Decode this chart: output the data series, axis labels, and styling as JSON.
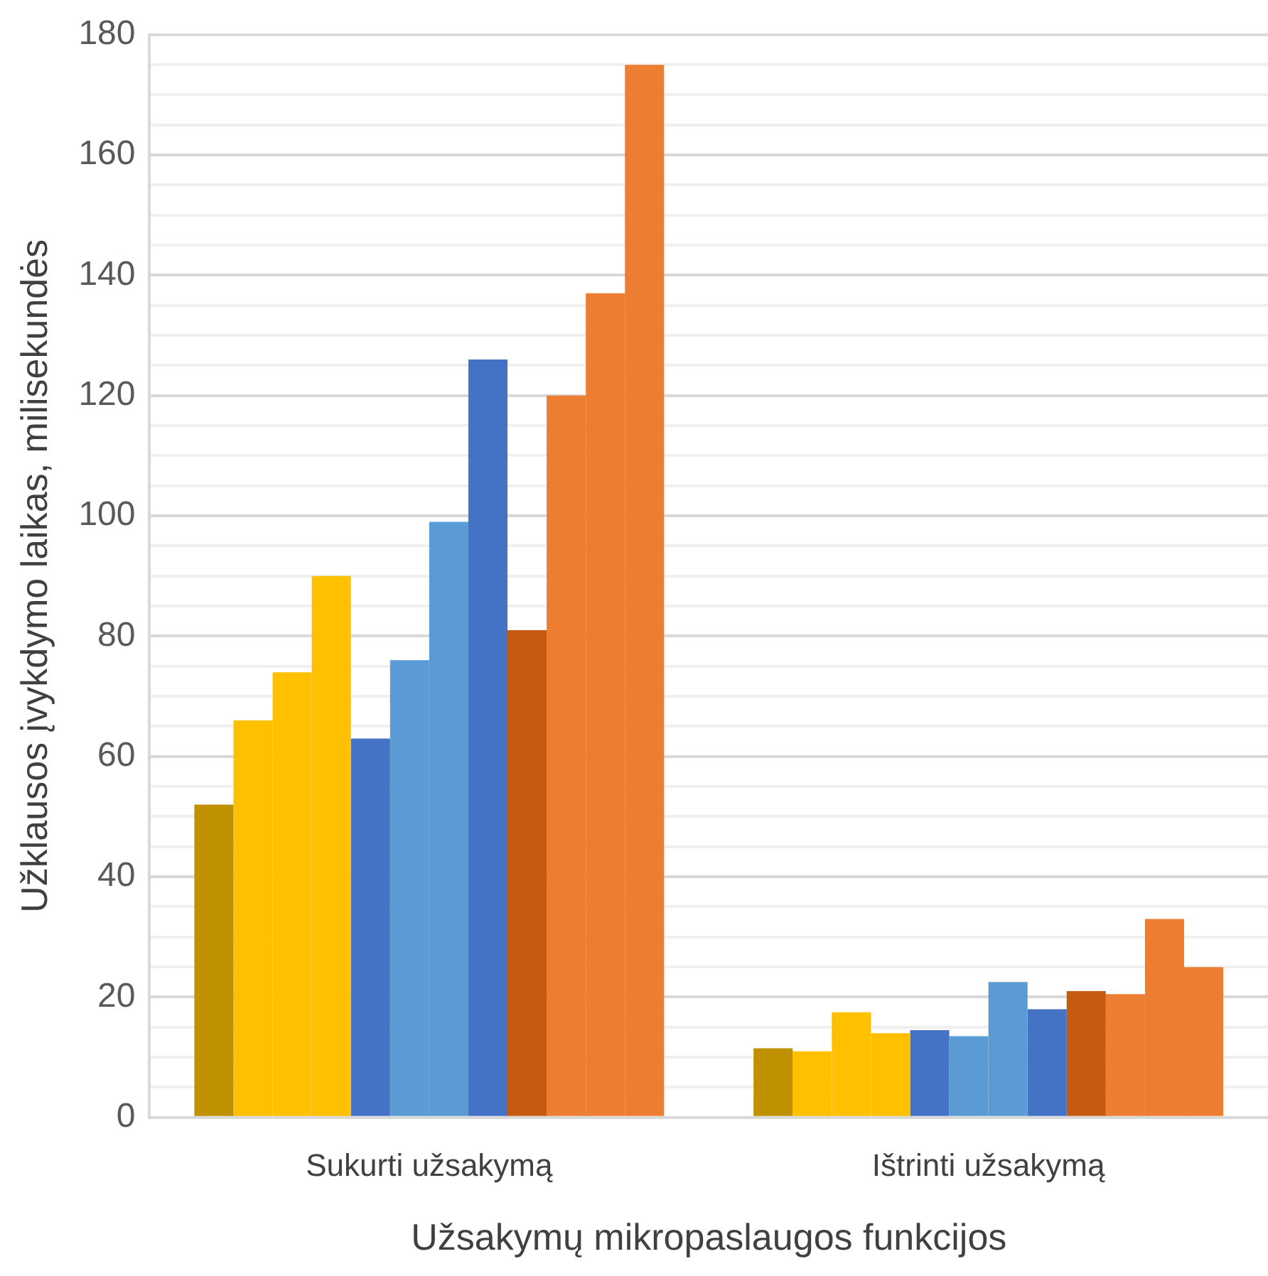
{
  "chart_data": {
    "type": "bar",
    "xlabel": "Užsakymų mikropaslaugos funkcijos",
    "ylabel": "Užklausos įvykdymo laikas, milisekundės",
    "categories": [
      "Sukurti užsakymą",
      "Ištrinti užsakymą"
    ],
    "series": [
      {
        "color": "#bf9000",
        "values": [
          52,
          11.5
        ]
      },
      {
        "color": "#ffc000",
        "values": [
          66,
          11
        ]
      },
      {
        "color": "#ffc000",
        "values": [
          74,
          17.5
        ]
      },
      {
        "color": "#ffc000",
        "values": [
          90,
          14
        ]
      },
      {
        "color": "#4472c4",
        "values": [
          63,
          14.5
        ]
      },
      {
        "color": "#5b9bd5",
        "values": [
          76,
          13.5
        ]
      },
      {
        "color": "#5b9bd5",
        "values": [
          99,
          22.5
        ]
      },
      {
        "color": "#4472c4",
        "values": [
          126,
          18
        ]
      },
      {
        "color": "#c55a11",
        "values": [
          81,
          21
        ]
      },
      {
        "color": "#ed7d31",
        "values": [
          120,
          20.5
        ]
      },
      {
        "color": "#ed7d31",
        "values": [
          137,
          33
        ]
      },
      {
        "color": "#ed7d31",
        "values": [
          175,
          25
        ]
      }
    ],
    "ylim": [
      0,
      180
    ],
    "yticks": [
      0,
      {
        "value": 5,
        "label": null
      },
      {
        "value": 10,
        "label": null
      },
      {
        "value": 15,
        "label": null
      },
      20,
      {
        "value": 25,
        "label": null
      },
      {
        "value": 30,
        "label": null
      },
      {
        "value": 35,
        "label": null
      },
      40,
      {
        "value": 45,
        "label": null
      },
      {
        "value": 50,
        "label": null
      },
      {
        "value": 55,
        "label": null
      },
      60,
      {
        "value": 65,
        "label": null
      },
      {
        "value": 70,
        "label": null
      },
      {
        "value": 75,
        "label": null
      },
      80,
      {
        "value": 85,
        "label": null
      },
      {
        "value": 90,
        "label": null
      },
      {
        "value": 95,
        "label": null
      },
      100,
      {
        "value": 105,
        "label": null
      },
      {
        "value": 110,
        "label": null
      },
      {
        "value": 115,
        "label": null
      },
      120,
      {
        "value": 125,
        "label": null
      },
      {
        "value": 130,
        "label": null
      },
      {
        "value": 135,
        "label": null
      },
      140,
      {
        "value": 145,
        "label": null
      },
      {
        "value": 150,
        "label": null
      },
      {
        "value": 155,
        "label": null
      },
      160,
      {
        "value": 165,
        "label": null
      },
      {
        "value": 170,
        "label": null
      },
      {
        "value": 175,
        "label": null
      },
      180
    ],
    "grid": "y"
  }
}
